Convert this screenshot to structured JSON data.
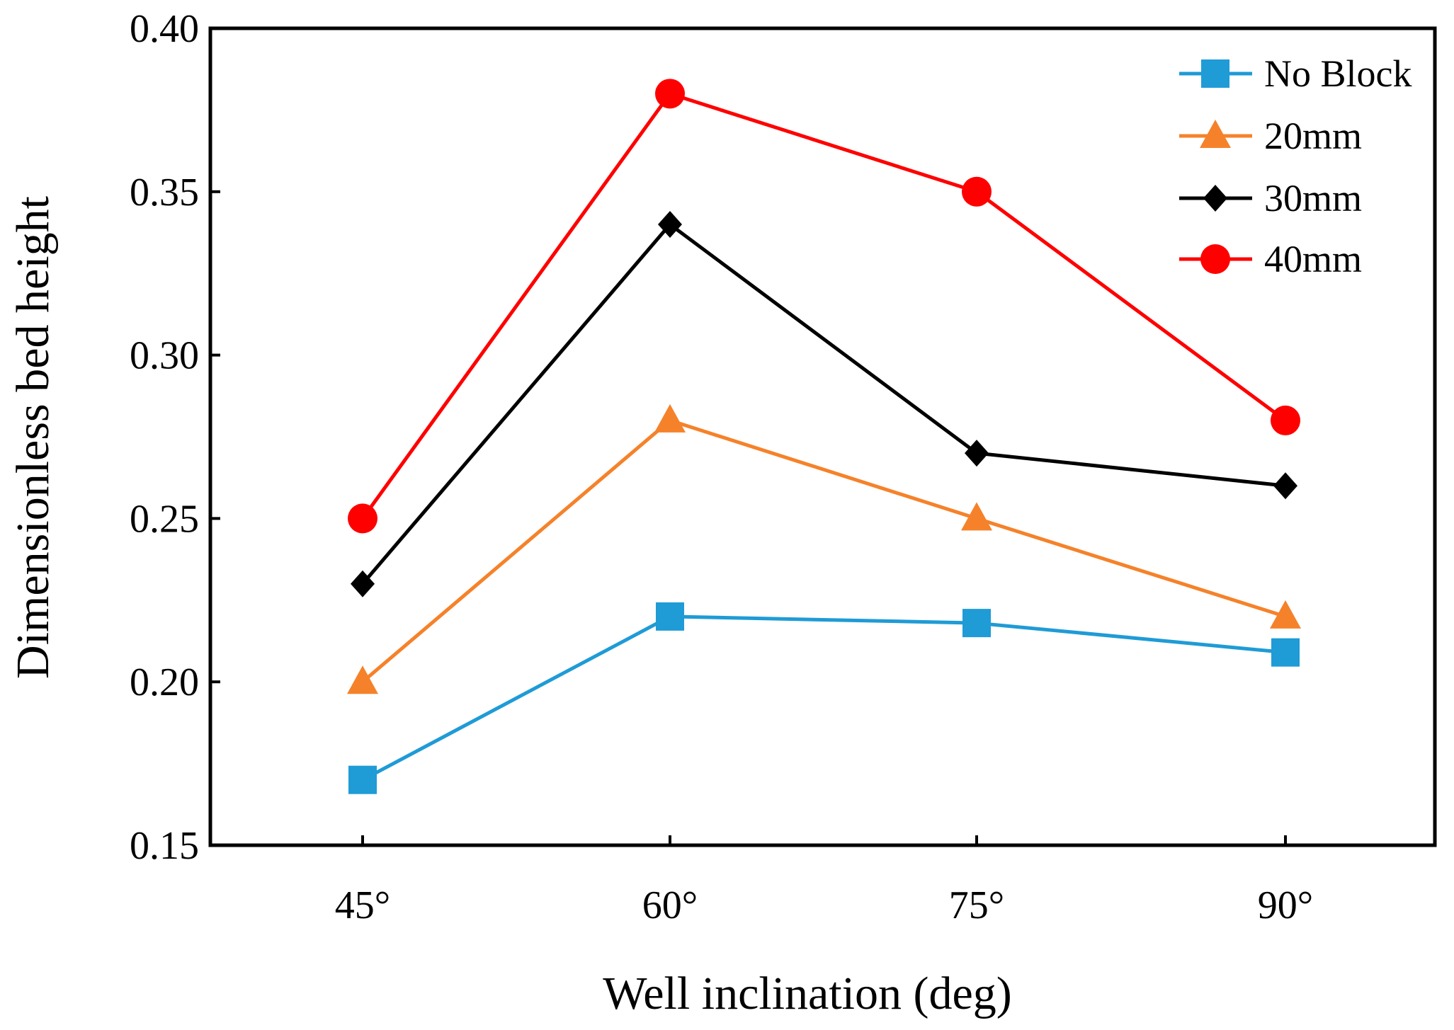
{
  "chart_data": {
    "type": "line",
    "title": "",
    "xlabel": "Well inclination (deg)",
    "ylabel": "Dimensionless bed height",
    "categories": [
      "45°",
      "60°",
      "75°",
      "90°"
    ],
    "ylim": [
      0.15,
      0.4
    ],
    "yticks": [
      "0.15",
      "0.20",
      "0.25",
      "0.30",
      "0.35",
      "0.40"
    ],
    "grid": false,
    "legend_position": "top-right",
    "series": [
      {
        "name": "No Block",
        "color": "#1f9bd6",
        "marker": "square",
        "values": [
          0.17,
          0.22,
          0.218,
          0.209
        ]
      },
      {
        "name": "20mm",
        "color": "#f5822a",
        "marker": "triangle",
        "values": [
          0.2,
          0.28,
          0.25,
          0.22
        ]
      },
      {
        "name": "30mm",
        "color": "#000000",
        "marker": "diamond",
        "values": [
          0.23,
          0.34,
          0.27,
          0.26
        ]
      },
      {
        "name": "40mm",
        "color": "#ff0000",
        "marker": "circle",
        "values": [
          0.25,
          0.38,
          0.35,
          0.28
        ]
      }
    ]
  }
}
